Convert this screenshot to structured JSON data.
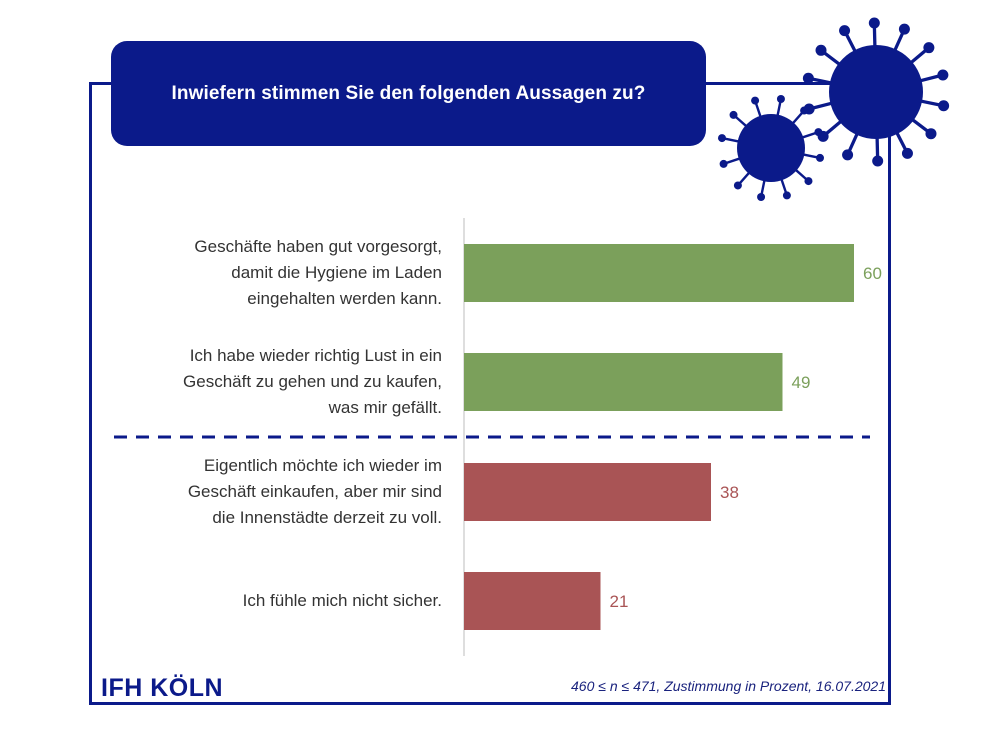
{
  "header": {
    "title": "Inwiefern stimmen Sie den folgenden Aussagen zu?"
  },
  "colors": {
    "brand": "#0b1a8a",
    "positive": "#7ba05b",
    "negative": "#a95455"
  },
  "icons": {
    "decoration": "virus-icon"
  },
  "chart_data": {
    "type": "bar",
    "orientation": "horizontal",
    "categories": [
      "Geschäfte haben gut vorgesorgt, damit die Hygiene im Laden eingehalten werden kann.",
      "Ich habe wieder richtig Lust in ein Geschäft zu gehen und zu kaufen, was mir gefällt.",
      "Eigentlich möchte ich wieder im Geschäft einkaufen, aber mir sind die Innenstädte derzeit zu voll.",
      "Ich fühle mich nicht sicher."
    ],
    "category_lines": [
      [
        "Geschäfte haben gut vorgesorgt,",
        "damit die Hygiene im Laden",
        "eingehalten werden kann."
      ],
      [
        "Ich habe wieder richtig Lust in ein",
        "Geschäft zu gehen und zu kaufen,",
        "was mir gefällt."
      ],
      [
        "Eigentlich möchte ich wieder im",
        "Geschäft einkaufen, aber mir sind",
        "die Innenstädte derzeit zu voll."
      ],
      [
        "Ich fühle mich nicht sicher."
      ]
    ],
    "values": [
      60,
      49,
      38,
      21
    ],
    "value_labels": [
      "60",
      "49",
      "38",
      "21"
    ],
    "bar_colors": [
      "#7ba05b",
      "#7ba05b",
      "#a95455",
      "#a95455"
    ],
    "xlim": [
      0,
      70
    ],
    "grid": false,
    "divider": "dashed line between second and third bar"
  },
  "footer": {
    "logo": "IFH KÖLN",
    "note": "460 ≤ n ≤ 471, Zustimmung in Prozent, 16.07.2021"
  }
}
